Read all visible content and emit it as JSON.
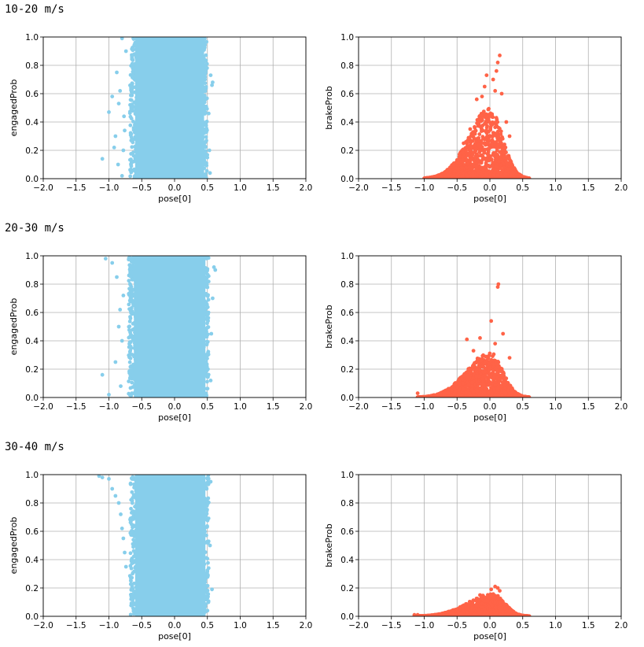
{
  "sections": [
    {
      "label": "10-20 m/s"
    },
    {
      "label": "20-30 m/s"
    },
    {
      "label": "30-40 m/s"
    }
  ],
  "chart_data": [
    {
      "type": "scatter",
      "row": 0,
      "col": 0,
      "xlabel": "pose[0]",
      "ylabel": "engagedProb",
      "xlim": [
        -2.0,
        2.0
      ],
      "ylim": [
        0.0,
        1.0
      ],
      "xticks": [
        "−2.0",
        "−1.5",
        "−1.0",
        "−0.5",
        "0.0",
        "0.5",
        "1.0",
        "1.5",
        "2.0"
      ],
      "yticks": [
        "0.0",
        "0.2",
        "0.4",
        "0.6",
        "0.8",
        "1.0"
      ],
      "color": "#87ceeb",
      "grid": true,
      "shape": "band",
      "core": {
        "x": [
          -0.68,
          0.5
        ],
        "y": [
          0.0,
          1.0
        ]
      },
      "outliers": [
        [
          -1.1,
          0.14
        ],
        [
          -1.0,
          0.47
        ],
        [
          -0.95,
          0.58
        ],
        [
          -0.92,
          0.22
        ],
        [
          -0.9,
          0.3
        ],
        [
          -0.88,
          0.75
        ],
        [
          -0.86,
          0.1
        ],
        [
          -0.85,
          0.53
        ],
        [
          -0.83,
          0.62
        ],
        [
          -0.8,
          0.02
        ],
        [
          -0.8,
          0.99
        ],
        [
          -0.78,
          0.2
        ],
        [
          -0.77,
          0.44
        ],
        [
          -0.76,
          0.34
        ],
        [
          -0.74,
          0.9
        ],
        [
          0.55,
          0.73
        ],
        [
          0.57,
          0.66
        ],
        [
          0.58,
          0.68
        ],
        [
          0.53,
          0.2
        ],
        [
          0.54,
          0.04
        ],
        [
          0.52,
          0.46
        ]
      ]
    },
    {
      "type": "scatter",
      "row": 0,
      "col": 1,
      "xlabel": "pose[0]",
      "ylabel": "brakeProb",
      "xlim": [
        -2.0,
        2.0
      ],
      "ylim": [
        0.0,
        1.0
      ],
      "xticks": [
        "−2.0",
        "−1.5",
        "−1.0",
        "−0.5",
        "0.0",
        "0.5",
        "1.0",
        "1.5",
        "2.0"
      ],
      "yticks": [
        "0.0",
        "0.2",
        "0.4",
        "0.6",
        "0.8",
        "1.0"
      ],
      "color": "#ff6347",
      "grid": true,
      "shape": "peak",
      "core": {
        "x": [
          -1.0,
          0.6
        ],
        "peak_x": 0.0,
        "peak_y": 0.5
      },
      "outliers": [
        [
          0.15,
          0.87
        ],
        [
          0.12,
          0.82
        ],
        [
          0.1,
          0.76
        ],
        [
          -0.05,
          0.73
        ],
        [
          0.05,
          0.7
        ],
        [
          -0.08,
          0.65
        ],
        [
          0.18,
          0.6
        ],
        [
          -0.2,
          0.56
        ],
        [
          0.25,
          0.4
        ],
        [
          -0.3,
          0.35
        ],
        [
          0.3,
          0.3
        ],
        [
          -0.4,
          0.25
        ],
        [
          0.08,
          0.62
        ],
        [
          -0.12,
          0.58
        ]
      ]
    },
    {
      "type": "scatter",
      "row": 1,
      "col": 0,
      "xlabel": "pose[0]",
      "ylabel": "engagedProb",
      "xlim": [
        -2.0,
        2.0
      ],
      "ylim": [
        0.0,
        1.0
      ],
      "xticks": [
        "−2.0",
        "−1.5",
        "−1.0",
        "−0.5",
        "0.0",
        "0.5",
        "1.0",
        "1.5",
        "2.0"
      ],
      "yticks": [
        "0.0",
        "0.2",
        "0.4",
        "0.6",
        "0.8",
        "1.0"
      ],
      "color": "#87ceeb",
      "grid": true,
      "shape": "band",
      "core": {
        "x": [
          -0.7,
          0.52
        ],
        "y": [
          0.0,
          1.0
        ]
      },
      "outliers": [
        [
          -1.1,
          0.16
        ],
        [
          -1.05,
          0.98
        ],
        [
          -1.0,
          0.02
        ],
        [
          -0.95,
          0.95
        ],
        [
          -0.9,
          0.25
        ],
        [
          -0.88,
          0.85
        ],
        [
          -0.85,
          0.5
        ],
        [
          -0.83,
          0.62
        ],
        [
          -0.82,
          0.08
        ],
        [
          -0.8,
          0.4
        ],
        [
          -0.78,
          0.72
        ],
        [
          0.6,
          0.92
        ],
        [
          0.62,
          0.9
        ],
        [
          0.58,
          0.7
        ],
        [
          0.56,
          0.45
        ],
        [
          0.55,
          0.12
        ]
      ]
    },
    {
      "type": "scatter",
      "row": 1,
      "col": 1,
      "xlabel": "pose[0]",
      "ylabel": "brakeProb",
      "xlim": [
        -2.0,
        2.0
      ],
      "ylim": [
        0.0,
        1.0
      ],
      "xticks": [
        "−2.0",
        "−1.5",
        "−1.0",
        "−0.5",
        "0.0",
        "0.5",
        "1.0",
        "1.5",
        "2.0"
      ],
      "yticks": [
        "0.0",
        "0.2",
        "0.4",
        "0.6",
        "0.8",
        "1.0"
      ],
      "color": "#ff6347",
      "grid": true,
      "shape": "peak",
      "core": {
        "x": [
          -1.1,
          0.6
        ],
        "peak_x": 0.0,
        "peak_y": 0.32
      },
      "outliers": [
        [
          0.13,
          0.8
        ],
        [
          0.12,
          0.78
        ],
        [
          0.02,
          0.54
        ],
        [
          0.2,
          0.45
        ],
        [
          -0.35,
          0.41
        ],
        [
          -0.15,
          0.42
        ],
        [
          0.08,
          0.38
        ],
        [
          -0.25,
          0.33
        ],
        [
          0.3,
          0.28
        ],
        [
          -1.1,
          0.03
        ]
      ]
    },
    {
      "type": "scatter",
      "row": 2,
      "col": 0,
      "xlabel": "pose[0]",
      "ylabel": "engagedProb",
      "xlim": [
        -2.0,
        2.0
      ],
      "ylim": [
        0.0,
        1.0
      ],
      "xticks": [
        "−2.0",
        "−1.5",
        "−1.0",
        "−0.5",
        "0.0",
        "0.5",
        "1.0",
        "1.5",
        "2.0"
      ],
      "yticks": [
        "0.0",
        "0.2",
        "0.4",
        "0.6",
        "0.8",
        "1.0"
      ],
      "color": "#87ceeb",
      "grid": true,
      "shape": "band",
      "core": {
        "x": [
          -0.68,
          0.52
        ],
        "y": [
          0.0,
          1.0
        ]
      },
      "outliers": [
        [
          -1.15,
          0.99
        ],
        [
          -1.1,
          0.98
        ],
        [
          -1.0,
          0.97
        ],
        [
          -0.95,
          0.9
        ],
        [
          -0.9,
          0.85
        ],
        [
          -0.85,
          0.8
        ],
        [
          -0.82,
          0.72
        ],
        [
          -0.8,
          0.62
        ],
        [
          -0.78,
          0.55
        ],
        [
          -0.76,
          0.45
        ],
        [
          -0.74,
          0.35
        ],
        [
          0.57,
          0.19
        ],
        [
          0.55,
          0.95
        ],
        [
          0.54,
          0.5
        ]
      ]
    },
    {
      "type": "scatter",
      "row": 2,
      "col": 1,
      "xlabel": "pose[0]",
      "ylabel": "brakeProb",
      "xlim": [
        -2.0,
        2.0
      ],
      "ylim": [
        0.0,
        1.0
      ],
      "xticks": [
        "−2.0",
        "−1.5",
        "−1.0",
        "−0.5",
        "0.0",
        "0.5",
        "1.0",
        "1.5",
        "2.0"
      ],
      "yticks": [
        "0.0",
        "0.2",
        "0.4",
        "0.6",
        "0.8",
        "1.0"
      ],
      "color": "#ff6347",
      "grid": true,
      "shape": "peak",
      "core": {
        "x": [
          -1.15,
          0.6
        ],
        "peak_x": 0.05,
        "peak_y": 0.16
      },
      "outliers": [
        [
          0.08,
          0.21
        ],
        [
          0.12,
          0.2
        ],
        [
          0.02,
          0.19
        ],
        [
          0.15,
          0.18
        ],
        [
          -0.15,
          0.15
        ],
        [
          -1.15,
          0.01
        ],
        [
          -1.1,
          0.01
        ]
      ]
    }
  ]
}
